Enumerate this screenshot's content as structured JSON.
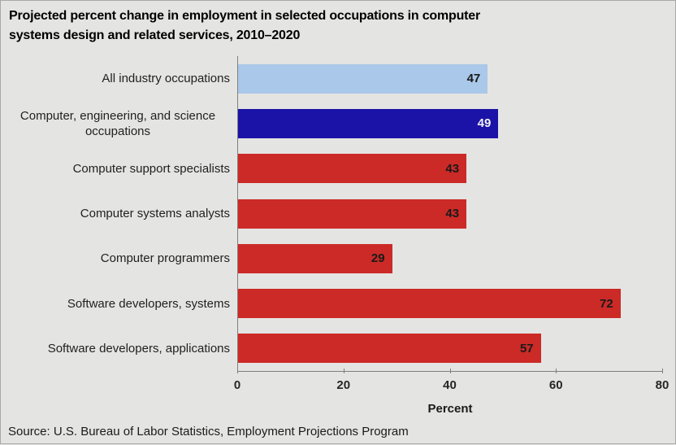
{
  "title": "Projected percent change in employment in selected occupations in computer systems design and related services, 2010–2020",
  "title_lines": [
    "Projected percent change in employment in selected occupations in computer",
    "systems design and related services, 2010–2020"
  ],
  "source": "Source: U.S. Bureau of Labor Statistics, Employment Projections Program",
  "colors": {
    "background": "#e4e4e2",
    "axis": "#7f7f7f",
    "light_blue": "#aac8e9",
    "dark_blue": "#1b12a7",
    "red": "#cb2a27",
    "value_text_dark": "#1a1a1a",
    "value_text_light": "#f2f2f2"
  },
  "chart_data": {
    "type": "bar",
    "orientation": "horizontal",
    "title": "Projected percent change in employment in selected occupations in computer systems design and related services, 2010–2020",
    "categories": [
      "All industry occupations",
      "Computer, engineering, and science occupations",
      "Computer support specialists",
      "Computer systems analysts",
      "Computer programmers",
      "Software developers, systems",
      "Software developers, applications"
    ],
    "values": [
      47,
      49,
      43,
      43,
      29,
      72,
      57
    ],
    "bar_colors": [
      "#aac8e9",
      "#1b12a7",
      "#cb2a27",
      "#cb2a27",
      "#cb2a27",
      "#cb2a27",
      "#cb2a27"
    ],
    "value_label_colors": [
      "#1a1a1a",
      "#f2f2f2",
      "#1a1a1a",
      "#1a1a1a",
      "#1a1a1a",
      "#1a1a1a",
      "#1a1a1a"
    ],
    "xlabel": "Percent",
    "ylabel": "",
    "xlim": [
      0,
      80
    ],
    "xticks": [
      0,
      20,
      40,
      60,
      80
    ],
    "grid": false,
    "legend": false,
    "value_labels_position": "inside-end"
  }
}
